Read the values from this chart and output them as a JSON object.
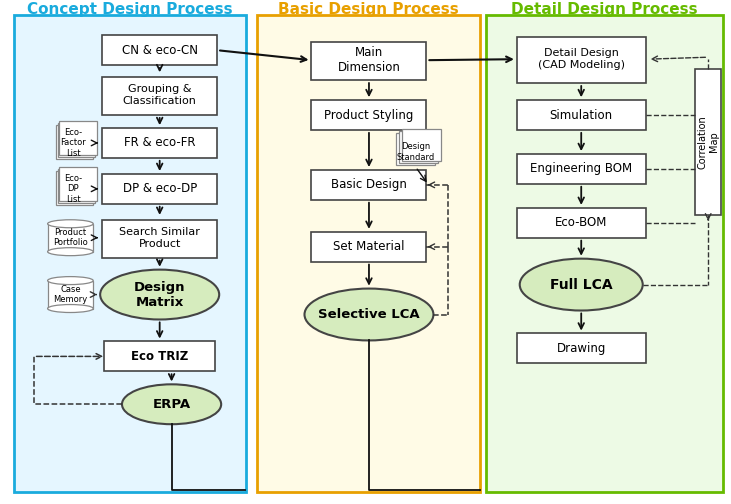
{
  "title_left": "Concept Design Process",
  "title_mid": "Basic Design Process",
  "title_right": "Detail Design Process",
  "title_left_color": "#1AABDD",
  "title_mid_color": "#E8A000",
  "title_right_color": "#66BB00",
  "bg_left_color": "#E5F6FF",
  "bg_mid_color": "#FFFBE6",
  "bg_right_color": "#EDFAE5",
  "border_left_color": "#1AABDD",
  "border_mid_color": "#E8A000",
  "border_right_color": "#66BB00",
  "box_fill": "#FFFFFF",
  "box_edge": "#444444",
  "ellipse_fill": "#D6ECBE",
  "ellipse_edge": "#444444",
  "arrow_color": "#111111",
  "dash_color": "#333333",
  "side_color": "#888888"
}
